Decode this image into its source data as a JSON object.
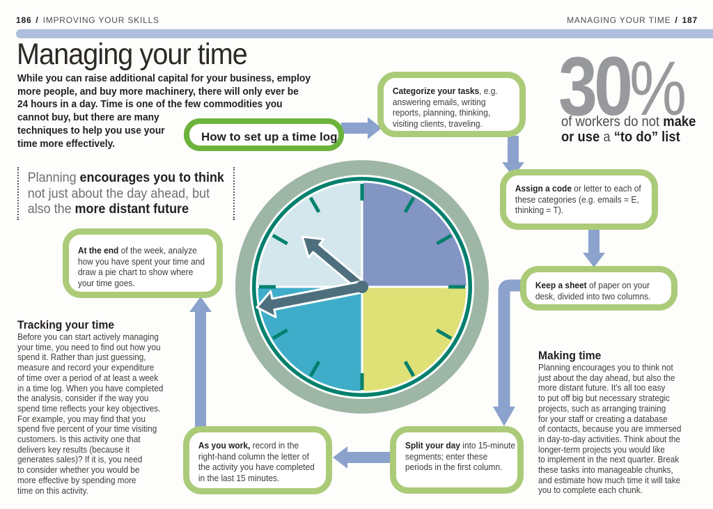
{
  "header": {
    "left": {
      "page_num": "186",
      "sep": "/",
      "section": "IMPROVING YOUR SKILLS"
    },
    "right": {
      "section": "MANAGING YOUR TIME",
      "sep": "/",
      "page_num": "187"
    }
  },
  "title": "Managing your time",
  "intro_lines": [
    "While you can raise additional capital for your business, employ",
    "more people, and buy more machinery, there will only ever be",
    "24 hours in a day. Time is one of the few commodities you",
    "cannot buy, but there are many",
    "techniques to help you use your",
    "time more effectively."
  ],
  "quote": {
    "l1a": "Planning ",
    "l1b": "encourages you to think",
    "l2": "not just about the day ahead, but",
    "l3a": "also the ",
    "l3b": "more distant future"
  },
  "stat": {
    "value": "30",
    "unit": "%",
    "l1a": "of workers do not ",
    "l1b": "make",
    "l2a": "or use",
    "l2b": " a ",
    "l2c": "“to do” list"
  },
  "flow": {
    "label": "How to set up a time log",
    "categorize": {
      "bold": "Categorize your tasks",
      "line1_rest": ", e.g.",
      "lines": [
        "answering emails, writing",
        "reports, planning, thinking,",
        "visiting clients, traveling."
      ]
    },
    "assign": {
      "bold": "Assign a code",
      "line1_rest": " or letter to each of",
      "lines": [
        "these categories (e.g. emails = E,",
        "thinking = T)."
      ]
    },
    "keep": {
      "bold": "Keep a sheet",
      "line1_rest": " of paper on your",
      "lines": [
        "desk, divided into two columns."
      ]
    },
    "split": {
      "bold": "Split your day",
      "line1_rest": " into 15-minute",
      "lines": [
        "segments; enter these",
        "periods in the first column."
      ]
    },
    "work": {
      "bold": "As you work,",
      "line1_rest": " record in the",
      "lines": [
        "right-hand column the letter of",
        "the activity you have completed",
        "in the last 15 minutes."
      ]
    },
    "end": {
      "bold": "At the end",
      "line1_rest": " of the week, analyze",
      "lines": [
        "how you have spent your time and",
        "draw a pie chart to show where",
        "your time goes."
      ]
    }
  },
  "sections": {
    "tracking": {
      "heading": "Tracking your time",
      "lines": [
        "Before you can start actively managing",
        "your time, you need to find out how you",
        "spend it. Rather than just guessing,",
        "measure and record your expenditure",
        "of time over a period of at least a week",
        "in a time log. When you have completed",
        "the analysis, consider if the way you",
        "spend time reflects your key objectives.",
        "For example, you may find that you",
        "spend five percent of your time visiting",
        "customers. Is this activity one that",
        "delivers key results (because it",
        "generates sales)? If it is, you need",
        "to consider whether you would be",
        "more effective by spending more",
        "time on this activity."
      ]
    },
    "making": {
      "heading": "Making time",
      "lines": [
        "Planning encourages you to think not",
        "just about the day ahead, but also the",
        "more distant future. It’s all too easy",
        "to put off big but necessary strategic",
        "projects, such as arranging training",
        "for your staff or creating a database",
        "of contacts, because you are immersed",
        "in day-to-day activities. Think about the",
        "longer-term projects you would like",
        "to implement in the next quarter. Break",
        "these tasks into manageable chunks,",
        "and estimate how much time it will take",
        "you to complete each chunk."
      ]
    }
  },
  "colors": {
    "header_bar": "#aebedc",
    "arrow_blue": "#8ba2cc",
    "green_bright": "#6cb33e",
    "green_light": "#abcb79",
    "stat_gray": "#97999c",
    "clock": {
      "ring_sage": "#9eb6a5",
      "rim_teal": "#00806d",
      "quadrant_top_left": "#d3e7ec",
      "quadrant_top_right": "#8295c3",
      "quadrant_bottom_right": "#dfe176",
      "quadrant_bottom_left": "#3fadc9",
      "tick_teal": "#00806d",
      "hand_slate": "#4d6f7d"
    }
  }
}
